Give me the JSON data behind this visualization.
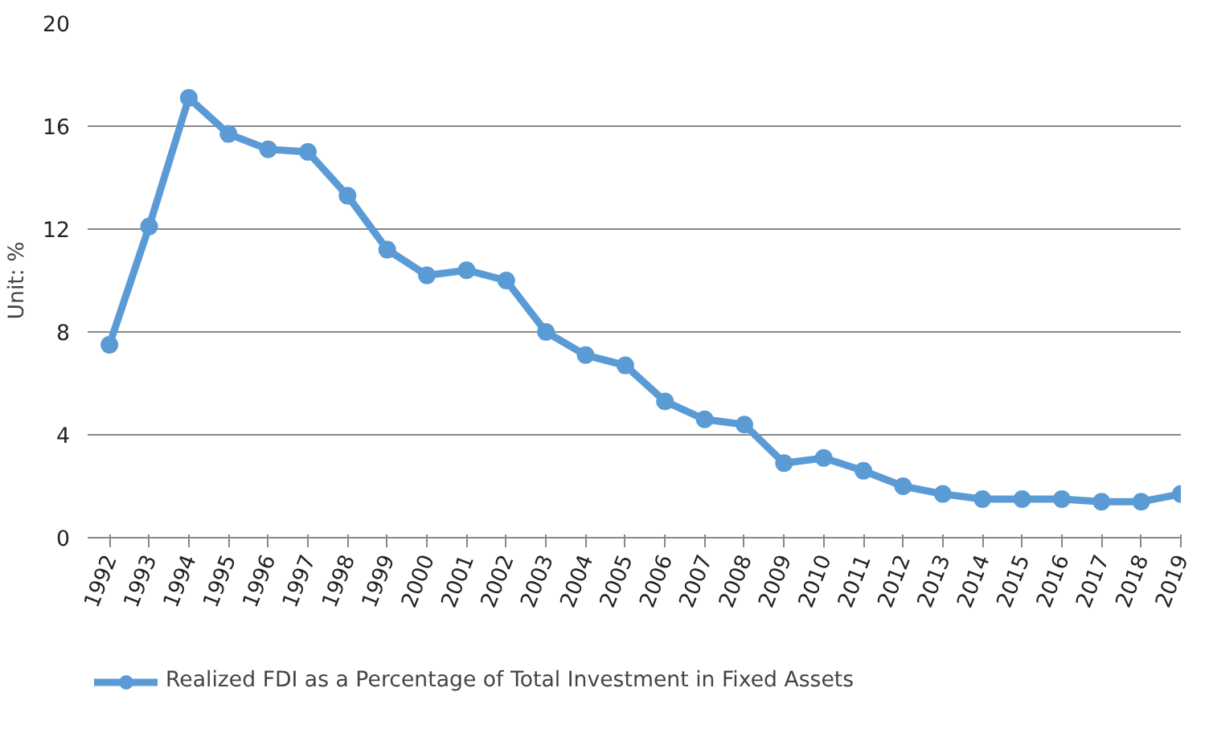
{
  "chart_data": {
    "type": "line",
    "ylabel": "Unit: %",
    "categories": [
      "1992",
      "1993",
      "1994",
      "1995",
      "1996",
      "1997",
      "1998",
      "1999",
      "2000",
      "2001",
      "2002",
      "2003",
      "2004",
      "2005",
      "2006",
      "2007",
      "2008",
      "2009",
      "2010",
      "2011",
      "2012",
      "2013",
      "2014",
      "2015",
      "2016",
      "2017",
      "2018",
      "2019"
    ],
    "series": [
      {
        "name": "Realized FDI as a Percentage of Total Investment in Fixed Assets",
        "color": "#5b9bd5",
        "values": [
          7.5,
          12.1,
          17.1,
          15.7,
          15.1,
          15.0,
          13.3,
          11.2,
          10.2,
          10.4,
          10.0,
          8.0,
          7.1,
          6.7,
          5.3,
          4.6,
          4.4,
          2.9,
          3.1,
          2.6,
          2.0,
          1.7,
          1.5,
          1.5,
          1.5,
          1.4,
          1.4,
          1.7
        ]
      }
    ],
    "ylim": [
      0,
      20
    ],
    "yticks": [
      0,
      4,
      8,
      12,
      16,
      20
    ],
    "grid": "y",
    "legend": "bottom",
    "marker": "circle",
    "line_style": "solid"
  }
}
